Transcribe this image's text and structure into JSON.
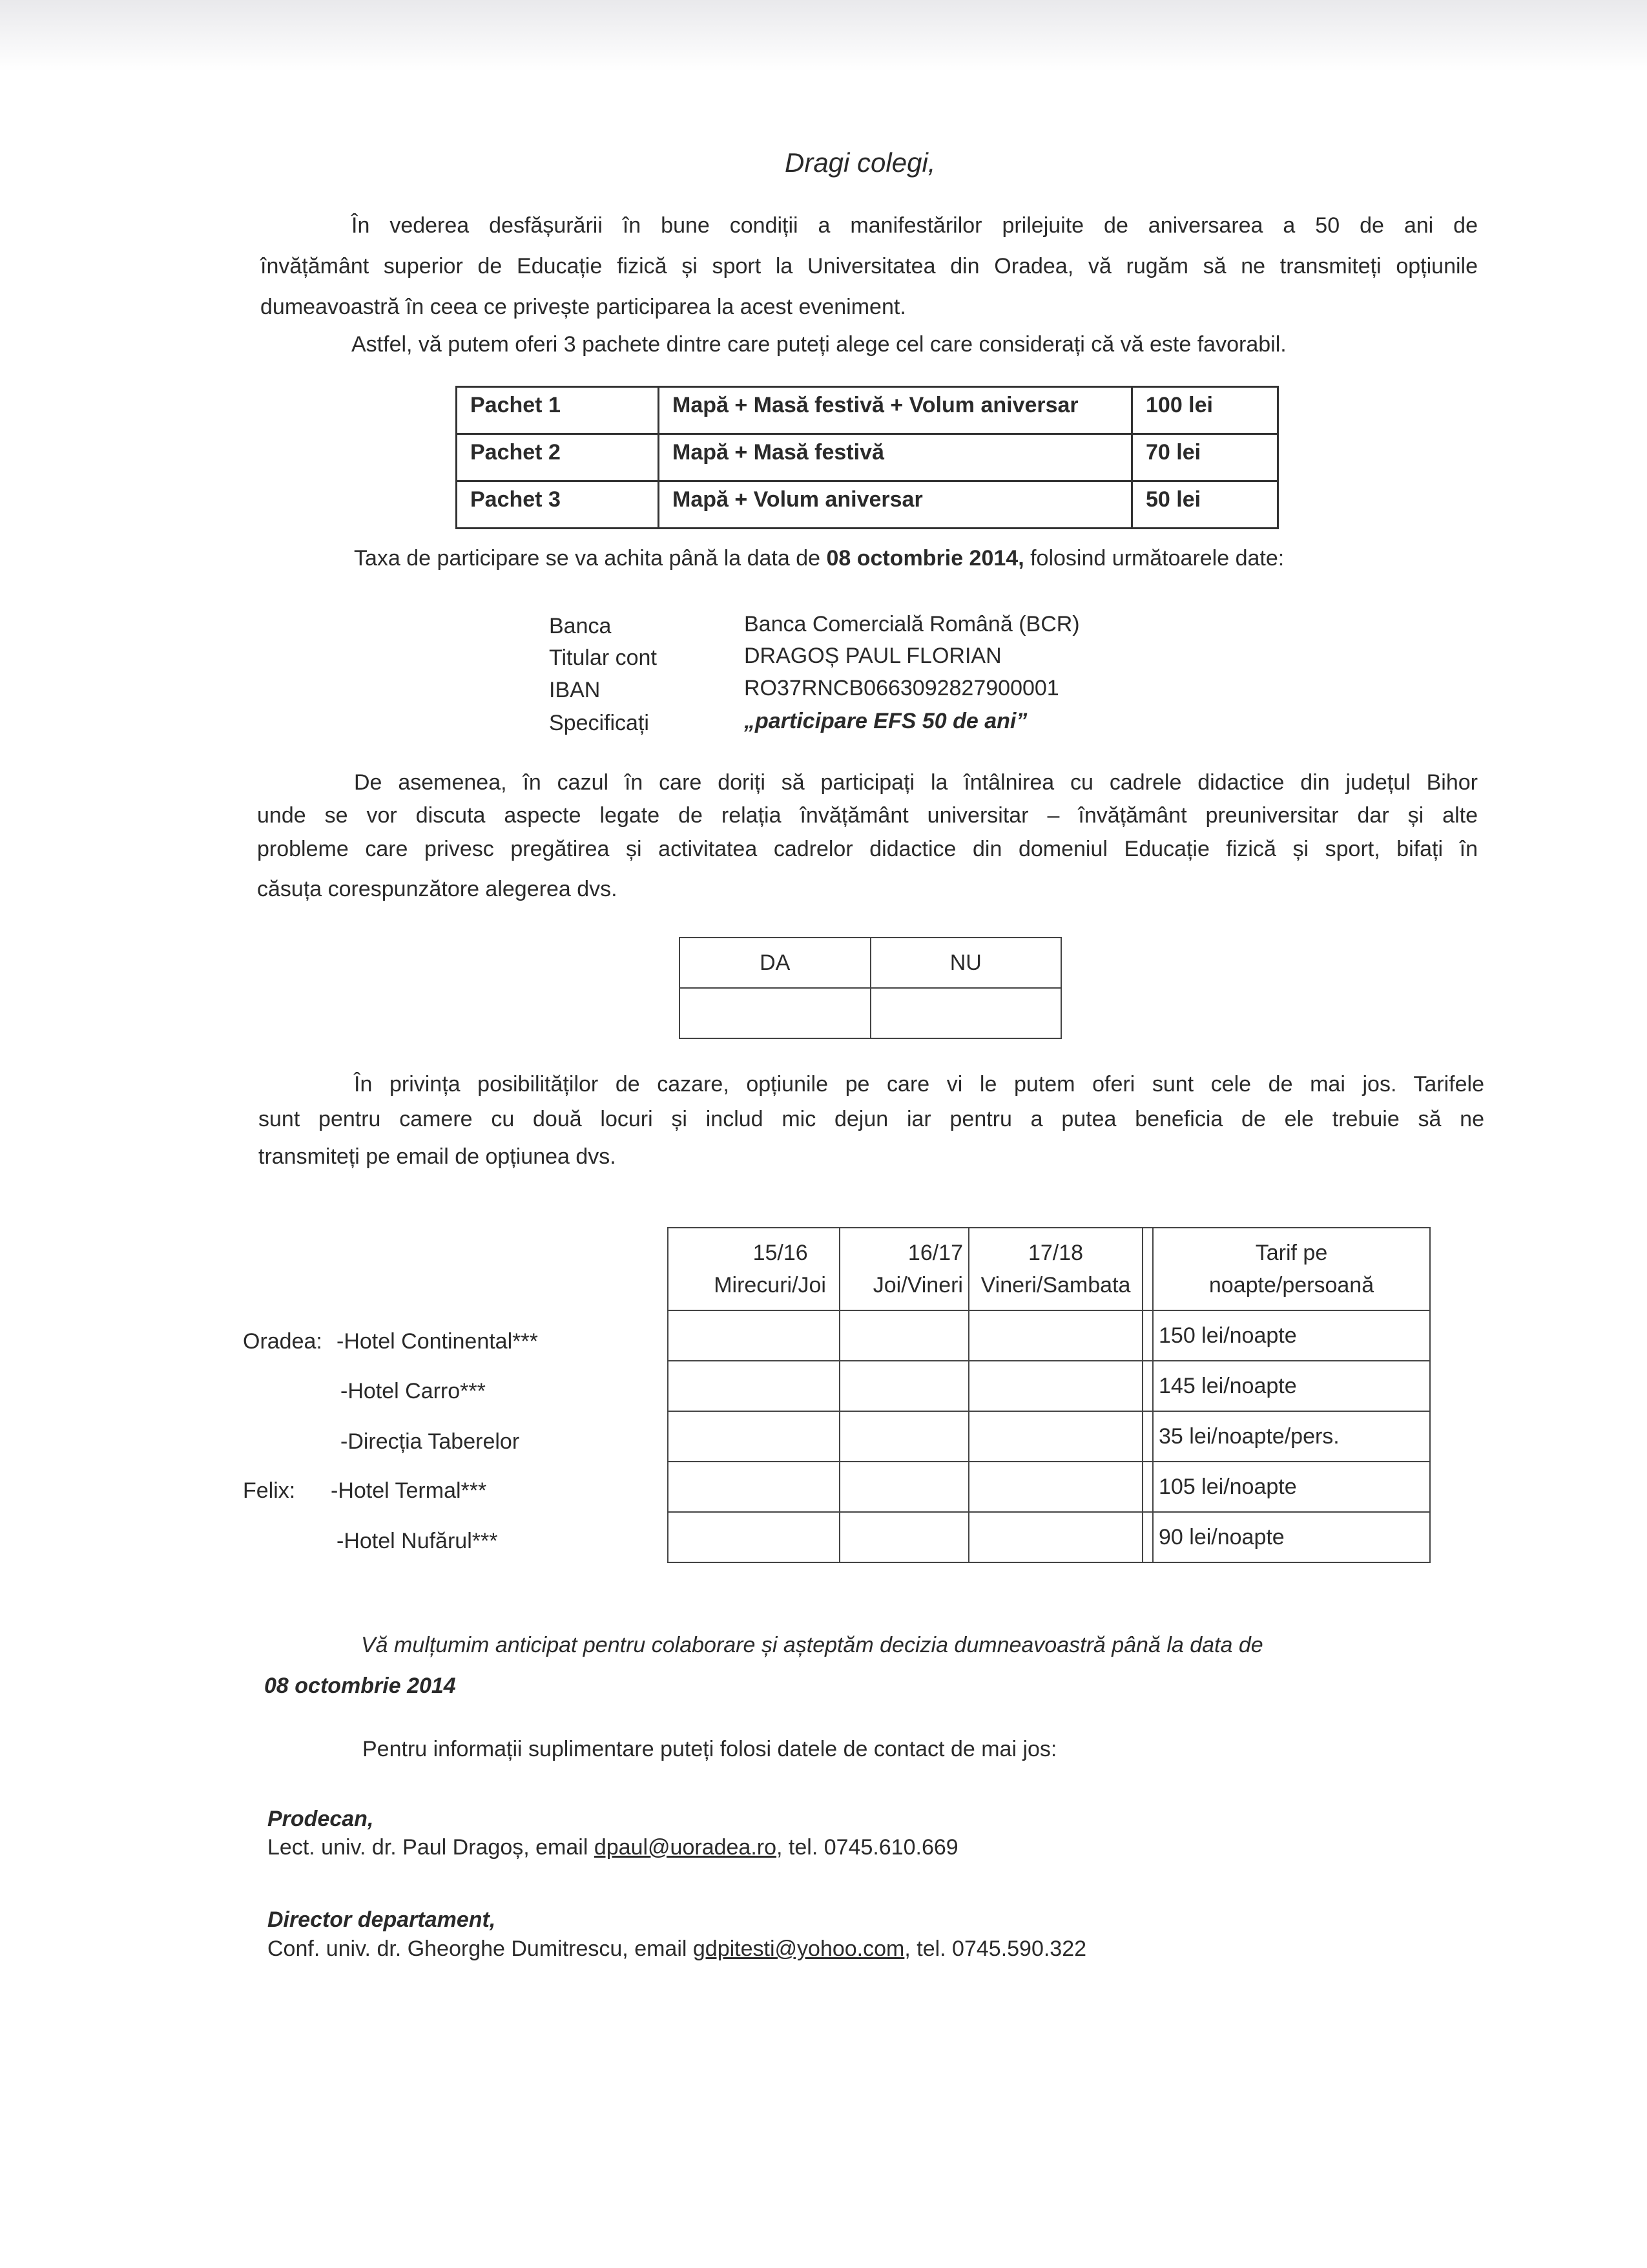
{
  "title": "Dragi colegi,",
  "intro": {
    "lines": [
      "În vederea desfășurării în bune condiții a manifestărilor prilejuite de aniversarea a 50 de ani de",
      "învățământ superior de Educație fizică și sport la Universitatea din Oradea, vă rugăm să ne transmiteți opțiunile",
      "dumeavoastră în ceea ce privește participarea la acest eveniment."
    ],
    "packages_intro": "Astfel, vă putem oferi 3 pachete dintre care puteți alege cel care considerați că vă este favorabil."
  },
  "packages": [
    {
      "name": "Pachet 1",
      "content": "Mapă + Masă festivă + Volum aniversar",
      "price": "100 lei"
    },
    {
      "name": "Pachet 2",
      "content": "Mapă + Masă festivă",
      "price": "70 lei"
    },
    {
      "name": "Pachet 3",
      "content": "Mapă + Volum aniversar",
      "price": "50 lei"
    }
  ],
  "payment": {
    "pre": "Taxa de participare se va achita până la data de ",
    "date": "08 octombrie 2014,",
    "post": " folosind următoarele date:"
  },
  "bank": [
    {
      "label": "Banca",
      "value": "Banca Comercială Română (BCR)"
    },
    {
      "label": "Titular cont",
      "value": "DRAGOȘ PAUL FLORIAN"
    },
    {
      "label": "IBAN",
      "value": "RO37RNCB0663092827900001"
    },
    {
      "label": "Specificați",
      "value": "„participare EFS 50 de ani”"
    }
  ],
  "meeting": {
    "lines": [
      "De asemenea, în cazul în care doriți să participați la întâlnirea cu cadrele didactice din județul Bihor",
      "unde se vor discuta aspecte legate de relația învățământ universitar – învățământ preuniversitar dar și alte",
      "probleme care privesc pregătirea și activitatea cadrelor didactice din domeniul Educație fizică și sport, bifați în",
      "căsuța corespunzătore alegerea dvs."
    ],
    "yes": "DA",
    "no": "NU"
  },
  "accommodation": {
    "lines": [
      "În privința posibilităților de cazare, opțiunile pe care vi le putem oferi sunt cele de mai jos. Tarifele",
      "sunt pentru camere cu două locuri și includ mic dejun iar pentru a putea beneficia de ele trebuie să ne",
      "transmiteți pe email de opțiunea dvs."
    ],
    "headers": [
      {
        "l1": "15/16",
        "l2": "Mirecuri/Joi"
      },
      {
        "l1": "16/17",
        "l2": "Joi/Vineri"
      },
      {
        "l1": "17/18",
        "l2": "Vineri/Sambata"
      },
      {
        "l1": "Tarif pe",
        "l2": "noapte/persoană"
      }
    ],
    "hotels": [
      {
        "city": "Oradea:",
        "name": "-Hotel Continental***",
        "rate": "150 lei/noapte"
      },
      {
        "city": "",
        "name": "-Hotel Carro***",
        "rate": "145 lei/noapte"
      },
      {
        "city": "",
        "name": "-Direcția Taberelor",
        "rate": "35 lei/noapte/pers."
      },
      {
        "city": "Felix:",
        "name": "-Hotel Termal***",
        "rate": "105 lei/noapte"
      },
      {
        "city": "",
        "name": "-Hotel Nufărul***",
        "rate": "90 lei/noapte"
      }
    ]
  },
  "closing": {
    "thanks": "Vă mulțumim anticipat pentru colaborare și așteptăm decizia dumneavoastră până la data de",
    "date": "08 octombrie 2014",
    "contact_intro": "Pentru informații suplimentare puteți folosi datele de contact de mai jos:"
  },
  "contacts": [
    {
      "role": "Prodecan,",
      "pre": "Lect. univ. dr. Paul Dragoș, email ",
      "email": "dpaul@uoradea.ro",
      "post": ", tel. 0745.610.669"
    },
    {
      "role": "Director departament,",
      "pre": "Conf. univ. dr. Gheorghe Dumitrescu, email ",
      "email": "gdpitesti@yohoo.com",
      "post": ", tel. 0745.590.322"
    }
  ]
}
